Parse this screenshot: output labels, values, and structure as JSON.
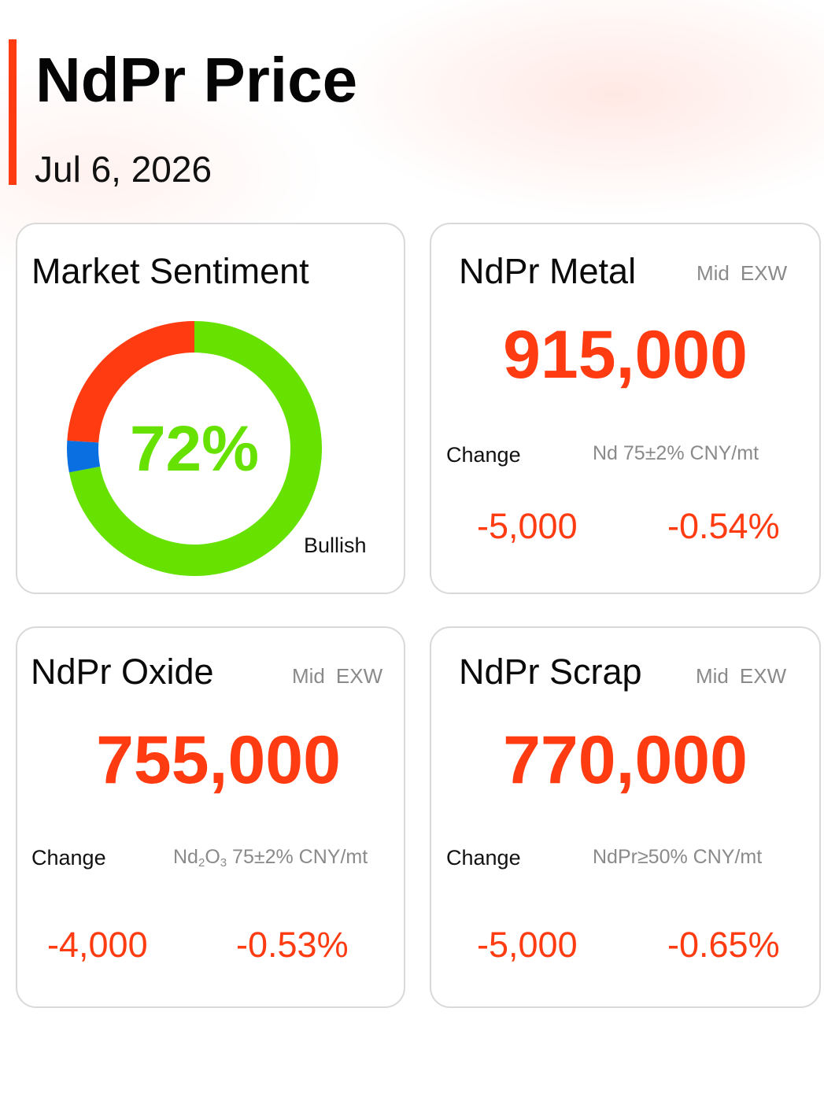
{
  "header": {
    "title": "NdPr Price",
    "date": "Jul 6, 2026"
  },
  "sentiment": {
    "title": "Market Sentiment",
    "bullish_percent": 72,
    "bullish_percent_label": "72%",
    "label": "Bullish",
    "segments": [
      {
        "name": "bullish",
        "value": 72,
        "color": "#66e100"
      },
      {
        "name": "neutral",
        "value": 4,
        "color": "#0a6fe0"
      },
      {
        "name": "bearish",
        "value": 24,
        "color": "#ff3b12"
      }
    ]
  },
  "metal": {
    "title": "NdPr Metal",
    "basis_mid": "Mid",
    "basis_exw": "EXW",
    "price": "915,000",
    "change_label": "Change",
    "spec": "Nd 75±2% CNY/mt",
    "change_abs": "-5,000",
    "change_pct": "-0.54%"
  },
  "oxide": {
    "title": "NdPr Oxide",
    "basis_mid": "Mid",
    "basis_exw": "EXW",
    "price": "755,000",
    "change_label": "Change",
    "spec_formula_nd": "Nd",
    "spec_formula_sub2": "2",
    "spec_formula_o": "O",
    "spec_formula_sub3": "3",
    "spec_rest": " 75±2% CNY/mt",
    "change_abs": "-4,000",
    "change_pct": "-0.53%"
  },
  "scrap": {
    "title": "NdPr Scrap",
    "basis_mid": "Mid",
    "basis_exw": "EXW",
    "price": "770,000",
    "change_label": "Change",
    "spec": "NdPr≥50% CNY/mt",
    "change_abs": "-5,000",
    "change_pct": "-0.65%"
  },
  "colors": {
    "accent": "#ff3b12",
    "bullish": "#66e100",
    "neutral": "#0a6fe0",
    "muted_text": "#8a8a8a",
    "card_border": "#d9d9d9"
  }
}
